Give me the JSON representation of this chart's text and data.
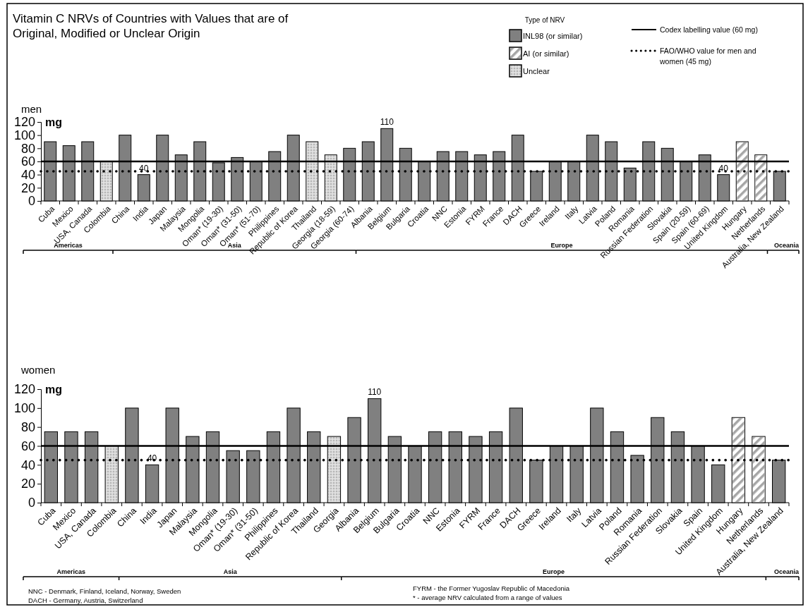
{
  "chart_data": [
    {
      "type": "bar",
      "title": "Vitamin C NRVs of Countries with Values that are of Original, Modified or Unclear Origin",
      "subtitle": "men",
      "ylabel": "mg",
      "legend_title": "Type of NRV",
      "legend": "top right",
      "categories": [
        "Cuba",
        "Mexico",
        "USA, Canada",
        "Colombia",
        "China",
        "India",
        "Japan",
        "Malaysia",
        "Mongolia",
        "Oman* (19-30)",
        "Oman* (31-50)",
        "Oman* (51-70)",
        "Philippines",
        "Republic of Korea",
        "Thailand",
        "Georgia (18-59)",
        "Georgia (60-74)",
        "Albania",
        "Belgium",
        "Bulgaria",
        "Croatia",
        "NNC",
        "Estonia",
        "FYRM",
        "France",
        "DACH",
        "Greece",
        "Ireland",
        "Italy",
        "Latvia",
        "Poland",
        "Romania",
        "Russian Federation",
        "Slovakia",
        "Spain (20-59)",
        "Spain (60-69)",
        "United Kingdom",
        "Hungary",
        "Netherlands",
        "Australia, New Zealand"
      ],
      "ylim": [
        0,
        120
      ],
      "yticks": [
        0,
        20,
        40,
        60,
        80,
        100,
        120
      ],
      "series": [
        {
          "name": "INL98 (or similar)",
          "color": "#808080",
          "values": [
            90,
            84,
            90,
            null,
            100,
            40,
            100,
            70,
            90,
            58,
            66,
            60,
            75,
            100,
            null,
            null,
            80,
            90,
            110,
            80,
            60,
            75,
            75,
            70,
            75,
            100,
            45,
            60,
            60,
            100,
            90,
            50,
            90,
            80,
            60,
            70,
            40,
            null,
            null,
            45
          ],
          "value_labels": [
            null,
            null,
            null,
            null,
            null,
            "40",
            null,
            null,
            null,
            null,
            null,
            null,
            null,
            null,
            null,
            null,
            null,
            null,
            "110",
            null,
            null,
            null,
            null,
            null,
            null,
            null,
            null,
            null,
            null,
            null,
            null,
            null,
            null,
            null,
            null,
            null,
            "40",
            null,
            null,
            null
          ]
        },
        {
          "name": "AI (or similar)",
          "color": "#ffffff",
          "values": [
            null,
            null,
            null,
            null,
            null,
            null,
            null,
            null,
            null,
            null,
            null,
            null,
            null,
            null,
            null,
            null,
            null,
            null,
            null,
            null,
            null,
            null,
            null,
            null,
            null,
            null,
            null,
            null,
            null,
            null,
            null,
            null,
            null,
            null,
            null,
            null,
            null,
            90,
            70,
            null
          ]
        },
        {
          "name": "Unclear",
          "color": "#d9d9d9",
          "values": [
            null,
            null,
            null,
            60,
            null,
            null,
            null,
            null,
            null,
            null,
            null,
            null,
            null,
            null,
            90,
            70,
            null,
            null,
            null,
            null,
            null,
            null,
            null,
            null,
            null,
            null,
            null,
            null,
            null,
            null,
            null,
            null,
            null,
            null,
            null,
            null,
            null,
            null,
            null,
            null
          ]
        }
      ],
      "ref_lines": [
        {
          "axis": "y",
          "value": 60,
          "label": "Codex labelling value (60 mg)",
          "line_style": "solid",
          "color": "#000000"
        },
        {
          "axis": "y",
          "value": 45,
          "label": "FAO/WHO value  for men and women  (45 mg)",
          "line_style": "dotted",
          "color": "#000000"
        }
      ],
      "annotations": [
        "Americas",
        "Asia",
        "Europe",
        "Oceania"
      ]
    },
    {
      "type": "bar",
      "subtitle": "women",
      "ylabel": "mg",
      "categories": [
        "Cuba",
        "Mexico",
        "USA, Canada",
        "Colombia",
        "China",
        "India",
        "Japan",
        "Malaysia",
        "Mongolia",
        "Oman* (19-30)",
        "Oman* (31-50)",
        "Philippines",
        "Republic of Korea",
        "Thailand",
        "Georgia",
        "Albania",
        "Belgium",
        "Bulgaria",
        "Croatia",
        "NNC",
        "Estonia",
        "FYRM",
        "France",
        "DACH",
        "Greece",
        "Ireland",
        "Italy",
        "Latvia",
        "Poland",
        "Romania",
        "Russian Federation",
        "Slovakia",
        "Spain",
        "United Kingdom",
        "Hungary",
        "Netherlands",
        "Australia, New Zealand"
      ],
      "ylim": [
        0,
        120
      ],
      "yticks": [
        0,
        20,
        40,
        60,
        80,
        100,
        120
      ],
      "series": [
        {
          "color": "#808080",
          "values": [
            75,
            75,
            75,
            null,
            100,
            40,
            100,
            70,
            75,
            55,
            55,
            75,
            100,
            75,
            null,
            90,
            110,
            70,
            60,
            75,
            75,
            70,
            75,
            100,
            45,
            60,
            60,
            100,
            75,
            50,
            90,
            75,
            60,
            40,
            null,
            null,
            45
          ],
          "value_labels": [
            null,
            null,
            null,
            null,
            null,
            "40",
            null,
            null,
            null,
            null,
            null,
            null,
            null,
            null,
            null,
            null,
            "110",
            null,
            null,
            null,
            null,
            null,
            null,
            null,
            null,
            null,
            null,
            null,
            null,
            null,
            null,
            null,
            null,
            null,
            null,
            null,
            null
          ]
        },
        {
          "color": "#ffffff",
          "values": [
            null,
            null,
            null,
            null,
            null,
            null,
            null,
            null,
            null,
            null,
            null,
            null,
            null,
            null,
            null,
            null,
            null,
            null,
            null,
            null,
            null,
            null,
            null,
            null,
            null,
            null,
            null,
            null,
            null,
            null,
            null,
            null,
            null,
            null,
            90,
            70,
            null
          ]
        },
        {
          "color": "#d9d9d9",
          "values": [
            null,
            null,
            null,
            60,
            null,
            null,
            null,
            null,
            null,
            null,
            null,
            null,
            null,
            null,
            70,
            null,
            null,
            null,
            null,
            null,
            null,
            null,
            null,
            null,
            null,
            null,
            null,
            null,
            null,
            null,
            null,
            null,
            null,
            null,
            null,
            null,
            null
          ]
        }
      ],
      "ref_lines": [
        {
          "axis": "y",
          "value": 60,
          "line_style": "solid",
          "color": "#000000"
        },
        {
          "axis": "y",
          "value": 45,
          "line_style": "dotted",
          "color": "#000000"
        }
      ],
      "annotations": [
        "Americas",
        "Asia",
        "Europe",
        "Oceania",
        "NNC -  Denmark, Finland, Iceland, Norway, Sweden",
        "DACH - Germany, Austria, Switzerland",
        "FYRM -   the Former Yugoslav Republic of Macedonia",
        "* - average NRV calculated from a range of values"
      ]
    }
  ]
}
